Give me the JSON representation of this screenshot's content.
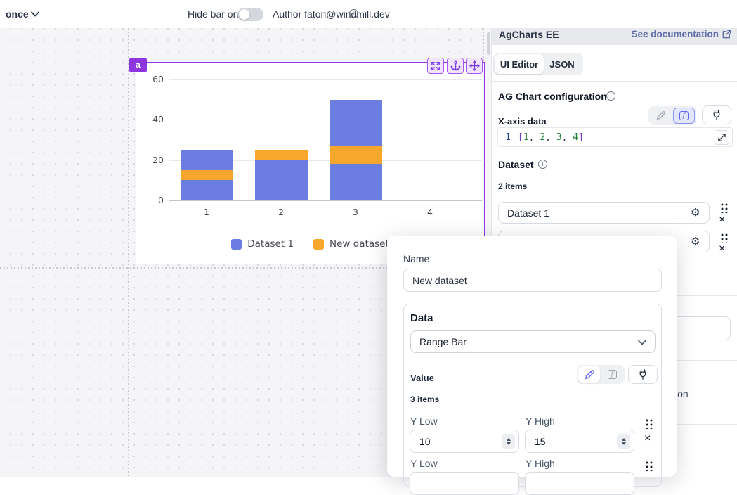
{
  "topbar": {
    "schedule": "once",
    "hide_bar_label": "Hide bar on view",
    "author_label": "Author faton@windmill.dev"
  },
  "panel": {
    "title": "AgCharts EE",
    "doc_link": "See documentation",
    "tabs": {
      "ui_editor": "UI Editor",
      "json": "JSON"
    },
    "config_title": "AG Chart configuration",
    "xaxis_label": "X-axis data",
    "editor": {
      "line_number": "1",
      "code": "[1, 2, 3, 4]",
      "tokens": [
        {
          "t": "[",
          "k": "br"
        },
        {
          "t": "1",
          "k": "num"
        },
        {
          "t": ", ",
          "k": "pln"
        },
        {
          "t": "2",
          "k": "num"
        },
        {
          "t": ", ",
          "k": "pln"
        },
        {
          "t": "3",
          "k": "num"
        },
        {
          "t": ", ",
          "k": "pln"
        },
        {
          "t": "4",
          "k": "num"
        },
        {
          "t": "]",
          "k": "br"
        }
      ]
    },
    "dataset_label": "Dataset",
    "dataset_count": "2 items",
    "datasets": [
      {
        "name": "Dataset 1"
      },
      {
        "name": ""
      }
    ],
    "occluded_fragment": "ion"
  },
  "modal": {
    "name_label": "Name",
    "name_value": "New dataset",
    "data_label": "Data",
    "data_type": "Range Bar",
    "value_label": "Value",
    "items_count": "3 items",
    "y_low_label": "Y Low",
    "y_high_label": "Y High",
    "rows": [
      {
        "y_low": "10",
        "y_high": "15"
      },
      {
        "y_low": "",
        "y_high": ""
      }
    ]
  },
  "component": {
    "badge": "a"
  },
  "chart_data": {
    "type": "bar",
    "x": [
      1,
      2,
      3,
      4
    ],
    "series": [
      {
        "name": "Dataset 1",
        "type": "column",
        "values": [
          25,
          20,
          50,
          null
        ],
        "color": "#6b7de0"
      },
      {
        "name": "New dataset",
        "type": "range-bar",
        "ranges": [
          [
            10,
            15
          ],
          [
            20,
            25
          ],
          [
            18,
            27
          ],
          null
        ],
        "color": "#f9a62c"
      }
    ],
    "ylim": [
      0,
      60
    ],
    "yticks": [
      0,
      20,
      40,
      60
    ],
    "grid": true,
    "legend_position": "bottom"
  },
  "colors": {
    "selection_purple": "#9333ea",
    "badge_purple": "#8f35e0",
    "indigo_active": "#6366f1",
    "doc_link_blue": "#5f6eaa",
    "dataset1_blue": "#6b7de0",
    "new_dataset_orange": "#f9a62c"
  }
}
